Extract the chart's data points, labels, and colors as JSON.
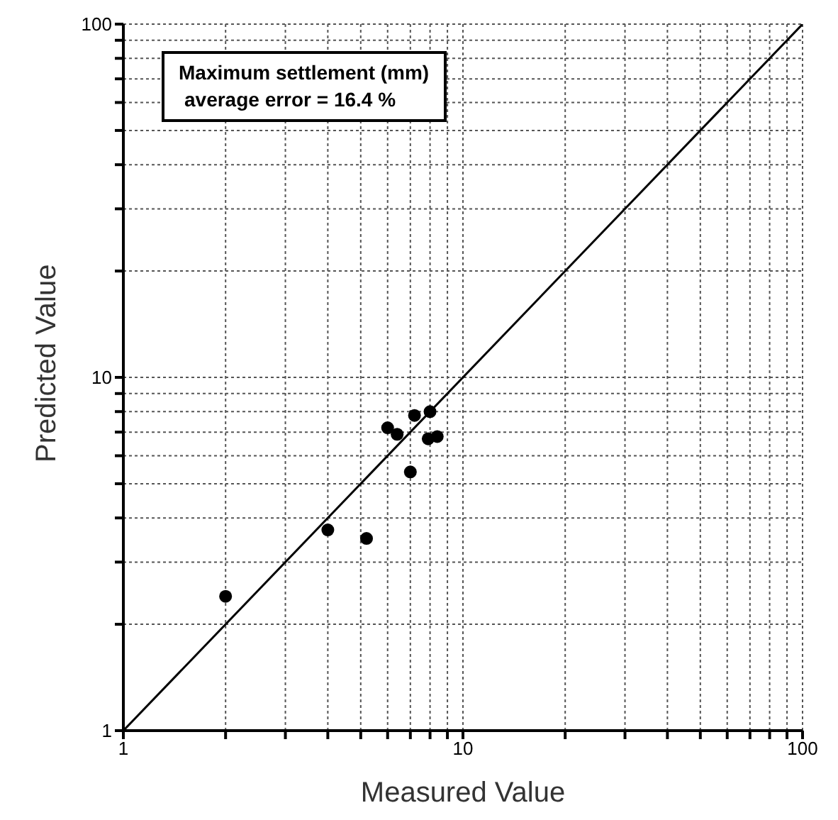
{
  "chart_data": {
    "type": "scatter",
    "xlabel": "Measured Value",
    "ylabel": "Predicted Value",
    "annotations": [
      "Maximum settlement (mm)",
      "average error = 16.4 %"
    ],
    "series": [
      {
        "marker": "circle",
        "color": "#000000",
        "x": [
          2.0,
          4.0,
          5.2,
          6.0,
          6.4,
          7.2,
          8.0,
          7.0,
          7.9,
          8.4
        ],
        "values": [
          2.4,
          3.7,
          3.5,
          7.2,
          6.9,
          7.8,
          8.0,
          5.4,
          6.7,
          6.8
        ]
      },
      {
        "type": "line",
        "marker": "none",
        "color": "#000000",
        "x": [
          1,
          100
        ],
        "values": [
          1,
          100
        ]
      }
    ],
    "log": "xy",
    "grid": true,
    "xlim": [
      1,
      100
    ],
    "ylim": [
      1,
      100
    ],
    "xticks": [
      1,
      {
        "value": 2,
        "label": null
      },
      {
        "value": 3,
        "label": null
      },
      {
        "value": 4,
        "label": null
      },
      {
        "value": 5,
        "label": null
      },
      {
        "value": 6,
        "label": null
      },
      {
        "value": 7,
        "label": null
      },
      {
        "value": 8,
        "label": null
      },
      {
        "value": 9,
        "label": null
      },
      10,
      {
        "value": 20,
        "label": null
      },
      {
        "value": 30,
        "label": null
      },
      {
        "value": 40,
        "label": null
      },
      {
        "value": 50,
        "label": null
      },
      {
        "value": 60,
        "label": null
      },
      {
        "value": 70,
        "label": null
      },
      {
        "value": 80,
        "label": null
      },
      {
        "value": 90,
        "label": null
      },
      100
    ],
    "yticks": [
      1,
      {
        "value": 2,
        "label": null
      },
      {
        "value": 3,
        "label": null
      },
      {
        "value": 4,
        "label": null
      },
      {
        "value": 5,
        "label": null
      },
      {
        "value": 6,
        "label": null
      },
      {
        "value": 7,
        "label": null
      },
      {
        "value": 8,
        "label": null
      },
      {
        "value": 9,
        "label": null
      },
      10,
      {
        "value": 20,
        "label": null
      },
      {
        "value": 30,
        "label": null
      },
      {
        "value": 40,
        "label": null
      },
      {
        "value": 50,
        "label": null
      },
      {
        "value": 60,
        "label": null
      },
      {
        "value": 70,
        "label": null
      },
      {
        "value": 80,
        "label": null
      },
      {
        "value": 90,
        "label": null
      },
      100
    ]
  }
}
